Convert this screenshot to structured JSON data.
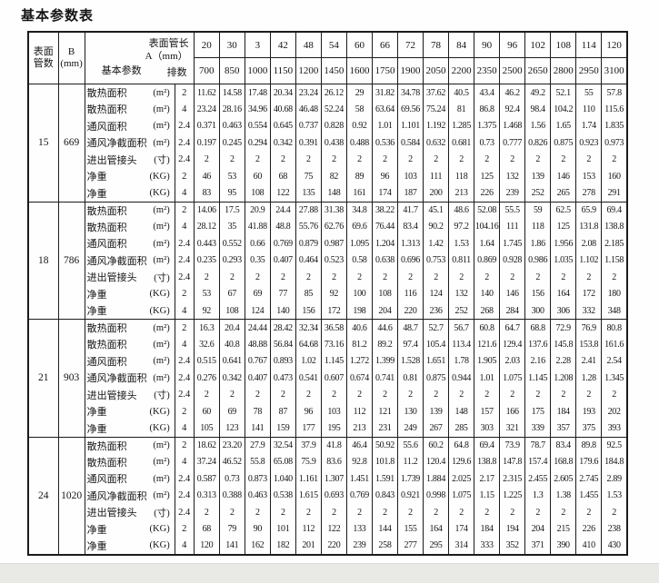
{
  "title": "基本参数表",
  "header": {
    "col_tubes": [
      "表面",
      "管数"
    ],
    "col_b": [
      "B",
      "(mm)"
    ],
    "corner": {
      "line1": "表面管长",
      "line2": "A（mm）",
      "line3": "排数",
      "basic": "基本参数"
    },
    "length_row": [
      "20",
      "30",
      "3",
      "42",
      "48",
      "54",
      "60",
      "66",
      "72",
      "78",
      "84",
      "90",
      "96",
      "102",
      "108",
      "114",
      "120"
    ],
    "length_row2": [
      "700",
      "850",
      "1000",
      "1150",
      "1200",
      "1450",
      "1600",
      "1750",
      "1900",
      "2050",
      "2200",
      "2350",
      "2500",
      "2650",
      "2800",
      "2950",
      "3100"
    ]
  },
  "groups": [
    {
      "tubes": "15",
      "b": "669",
      "rows": [
        {
          "label": "散热面积",
          "unit": "(m²)",
          "rank": "2",
          "values": [
            "11.62",
            "14.58",
            "17.48",
            "20.34",
            "23.24",
            "26.12",
            "29",
            "31.82",
            "34.78",
            "37.62",
            "40.5",
            "43.4",
            "46.2",
            "49.2",
            "52.1",
            "55",
            "57.8"
          ]
        },
        {
          "label": "散热面积",
          "unit": "(m²)",
          "rank": "4",
          "values": [
            "23.24",
            "28.16",
            "34.96",
            "40.68",
            "46.48",
            "52.24",
            "58",
            "63.64",
            "69.56",
            "75.24",
            "81",
            "86.8",
            "92.4",
            "98.4",
            "104.2",
            "110",
            "115.6"
          ]
        },
        {
          "label": "通风面积",
          "unit": "(m²)",
          "rank": "2.4",
          "values": [
            "0.371",
            "0.463",
            "0.554",
            "0.645",
            "0.737",
            "0.828",
            "0.92",
            "1.01",
            "1.101",
            "1.192",
            "1.285",
            "1.375",
            "1.468",
            "1.56",
            "1.65",
            "1.74",
            "1.835"
          ]
        },
        {
          "label": "通风净截面积",
          "unit": "(m²)",
          "rank": "2.4",
          "values": [
            "0.197",
            "0.245",
            "0.294",
            "0.342",
            "0.391",
            "0.438",
            "0.488",
            "0.536",
            "0.584",
            "0.632",
            "0.681",
            "0.73",
            "0.777",
            "0.826",
            "0.875",
            "0.923",
            "0.973"
          ]
        },
        {
          "label": "进出管接头",
          "unit": "(寸)",
          "rank": "2.4",
          "values": [
            "2",
            "2",
            "2",
            "2",
            "2",
            "2",
            "2",
            "2",
            "2",
            "2",
            "2",
            "2",
            "2",
            "2",
            "2",
            "2",
            "2"
          ]
        },
        {
          "label": "净重",
          "unit": "(KG)",
          "rank": "2",
          "values": [
            "46",
            "53",
            "60",
            "68",
            "75",
            "82",
            "89",
            "96",
            "103",
            "111",
            "118",
            "125",
            "132",
            "139",
            "146",
            "153",
            "160"
          ]
        },
        {
          "label": "净重",
          "unit": "(KG)",
          "rank": "4",
          "values": [
            "83",
            "95",
            "108",
            "122",
            "135",
            "148",
            "161",
            "174",
            "187",
            "200",
            "213",
            "226",
            "239",
            "252",
            "265",
            "278",
            "291"
          ]
        }
      ]
    },
    {
      "tubes": "18",
      "b": "786",
      "rows": [
        {
          "label": "散热面积",
          "unit": "(m²)",
          "rank": "2",
          "values": [
            "14.06",
            "17.5",
            "20.9",
            "24.4",
            "27.88",
            "31.38",
            "34.8",
            "38.22",
            "41.7",
            "45.1",
            "48.6",
            "52.08",
            "55.5",
            "59",
            "62.5",
            "65.9",
            "69.4"
          ]
        },
        {
          "label": "散热面积",
          "unit": "(m²)",
          "rank": "4",
          "values": [
            "28.12",
            "35",
            "41.88",
            "48.8",
            "55.76",
            "62.76",
            "69.6",
            "76.44",
            "83.4",
            "90.2",
            "97.2",
            "104.16",
            "111",
            "118",
            "125",
            "131.8",
            "138.8"
          ]
        },
        {
          "label": "通风面积",
          "unit": "(m²)",
          "rank": "2.4",
          "values": [
            "0.443",
            "0.552",
            "0.66",
            "0.769",
            "0.879",
            "0.987",
            "1.095",
            "1.204",
            "1.313",
            "1.42",
            "1.53",
            "1.64",
            "1.745",
            "1.86",
            "1.956",
            "2.08",
            "2.185"
          ]
        },
        {
          "label": "通风净截面积",
          "unit": "(m²)",
          "rank": "2.4",
          "values": [
            "0.235",
            "0.293",
            "0.35",
            "0.407",
            "0.464",
            "0.523",
            "0.58",
            "0.638",
            "0.696",
            "0.753",
            "0.811",
            "0.869",
            "0.928",
            "0.986",
            "1.035",
            "1.102",
            "1.158"
          ]
        },
        {
          "label": "进出管接头",
          "unit": "(寸)",
          "rank": "2.4",
          "values": [
            "2",
            "2",
            "2",
            "2",
            "2",
            "2",
            "2",
            "2",
            "2",
            "2",
            "2",
            "2",
            "2",
            "2",
            "2",
            "2",
            "2"
          ]
        },
        {
          "label": "净重",
          "unit": "(KG)",
          "rank": "2",
          "values": [
            "53",
            "67",
            "69",
            "77",
            "85",
            "92",
            "100",
            "108",
            "116",
            "124",
            "132",
            "140",
            "146",
            "156",
            "164",
            "172",
            "180"
          ]
        },
        {
          "label": "净重",
          "unit": "(KG)",
          "rank": "4",
          "values": [
            "92",
            "108",
            "124",
            "140",
            "156",
            "172",
            "198",
            "204",
            "220",
            "236",
            "252",
            "268",
            "284",
            "300",
            "306",
            "332",
            "348"
          ]
        }
      ]
    },
    {
      "tubes": "21",
      "b": "903",
      "rows": [
        {
          "label": "散热面积",
          "unit": "(m²)",
          "rank": "2",
          "values": [
            "16.3",
            "20.4",
            "24.44",
            "28.42",
            "32.34",
            "36.58",
            "40.6",
            "44.6",
            "48.7",
            "52.7",
            "56.7",
            "60.8",
            "64.7",
            "68.8",
            "72.9",
            "76.9",
            "80.8"
          ]
        },
        {
          "label": "散热面积",
          "unit": "(m²)",
          "rank": "4",
          "values": [
            "32.6",
            "40.8",
            "48.88",
            "56.84",
            "64.68",
            "73.16",
            "81.2",
            "89.2",
            "97.4",
            "105.4",
            "113.4",
            "121.6",
            "129.4",
            "137.6",
            "145.8",
            "153.8",
            "161.6"
          ]
        },
        {
          "label": "通风面积",
          "unit": "(m²)",
          "rank": "2.4",
          "values": [
            "0.515",
            "0.641",
            "0.767",
            "0.893",
            "1.02",
            "1.145",
            "1.272",
            "1.399",
            "1.528",
            "1.651",
            "1.78",
            "1.905",
            "2.03",
            "2.16",
            "2.28",
            "2.41",
            "2.54"
          ]
        },
        {
          "label": "通风净截面积",
          "unit": "(m²)",
          "rank": "2.4",
          "values": [
            "0.276",
            "0.342",
            "0.407",
            "0.473",
            "0.541",
            "0.607",
            "0.674",
            "0.741",
            "0.81",
            "0.875",
            "0.944",
            "1.01",
            "1.075",
            "1.145",
            "1.208",
            "1.28",
            "1.345"
          ]
        },
        {
          "label": "进出管接头",
          "unit": "(寸)",
          "rank": "2.4",
          "values": [
            "2",
            "2",
            "2",
            "2",
            "2",
            "2",
            "2",
            "2",
            "2",
            "2",
            "2",
            "2",
            "2",
            "2",
            "2",
            "2",
            "2"
          ]
        },
        {
          "label": "净重",
          "unit": "(KG)",
          "rank": "2",
          "values": [
            "60",
            "69",
            "78",
            "87",
            "96",
            "103",
            "112",
            "121",
            "130",
            "139",
            "148",
            "157",
            "166",
            "175",
            "184",
            "193",
            "202"
          ]
        },
        {
          "label": "净重",
          "unit": "(KG)",
          "rank": "4",
          "values": [
            "105",
            "123",
            "141",
            "159",
            "177",
            "195",
            "213",
            "231",
            "249",
            "267",
            "285",
            "303",
            "321",
            "339",
            "357",
            "375",
            "393"
          ]
        }
      ]
    },
    {
      "tubes": "24",
      "b": "1020",
      "rows": [
        {
          "label": "散热面积",
          "unit": "(m²)",
          "rank": "2",
          "values": [
            "18.62",
            "23.20",
            "27.9",
            "32.54",
            "37.9",
            "41.8",
            "46.4",
            "50.92",
            "55.6",
            "60.2",
            "64.8",
            "69.4",
            "73.9",
            "78.7",
            "83.4",
            "89.8",
            "92.5"
          ]
        },
        {
          "label": "散热面积",
          "unit": "(m²)",
          "rank": "4",
          "values": [
            "37.24",
            "46.52",
            "55.8",
            "65.08",
            "75.9",
            "83.6",
            "92.8",
            "101.8",
            "11.2",
            "120.4",
            "129.6",
            "138.8",
            "147.8",
            "157.4",
            "168.8",
            "179.6",
            "184.8"
          ]
        },
        {
          "label": "通风面积",
          "unit": "(m²)",
          "rank": "2.4",
          "values": [
            "0.587",
            "0.73",
            "0.873",
            "1.040",
            "1.161",
            "1.307",
            "1.451",
            "1.591",
            "1.739",
            "1.884",
            "2.025",
            "2.17",
            "2.315",
            "2.455",
            "2.605",
            "2.745",
            "2.89"
          ]
        },
        {
          "label": "通风净截面积",
          "unit": "(m²)",
          "rank": "2.4",
          "values": [
            "0.313",
            "0.388",
            "0.463",
            "0.538",
            "1.615",
            "0.693",
            "0.769",
            "0.843",
            "0.921",
            "0.998",
            "1.075",
            "1.15",
            "1.225",
            "1.3",
            "1.38",
            "1.455",
            "1.53"
          ]
        },
        {
          "label": "进出管接头",
          "unit": "(寸)",
          "rank": "2.4",
          "values": [
            "2",
            "2",
            "2",
            "2",
            "2",
            "2",
            "2",
            "2",
            "2",
            "2",
            "2",
            "2",
            "2",
            "2",
            "2",
            "2",
            "2"
          ]
        },
        {
          "label": "净重",
          "unit": "(KG)",
          "rank": "2",
          "values": [
            "68",
            "79",
            "90",
            "101",
            "112",
            "122",
            "133",
            "144",
            "155",
            "164",
            "174",
            "184",
            "194",
            "204",
            "215",
            "226",
            "238"
          ]
        },
        {
          "label": "净重",
          "unit": "(KG)",
          "rank": "4",
          "values": [
            "120",
            "141",
            "162",
            "182",
            "201",
            "220",
            "239",
            "258",
            "277",
            "295",
            "314",
            "333",
            "352",
            "371",
            "390",
            "410",
            "430"
          ]
        }
      ]
    }
  ]
}
